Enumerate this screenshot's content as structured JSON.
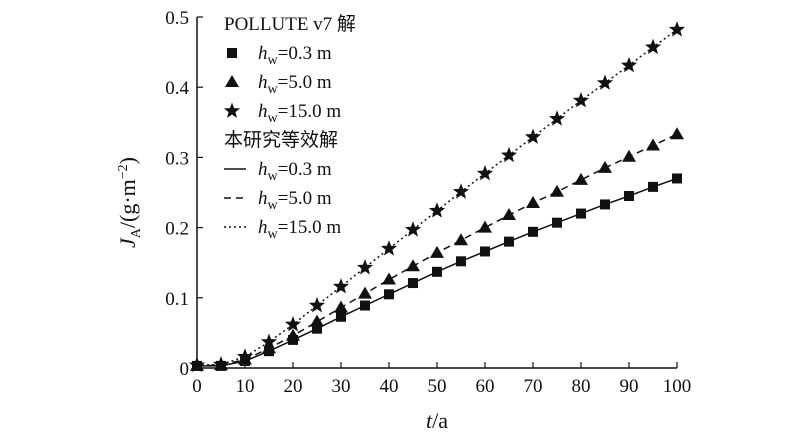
{
  "chart_data": {
    "type": "scatter",
    "title": "",
    "xlabel": "t/a",
    "ylabel": "J_A/(g·m^-2)",
    "xlim": [
      0,
      100
    ],
    "ylim": [
      0,
      0.5
    ],
    "x_ticks": [
      0,
      10,
      20,
      30,
      40,
      50,
      60,
      70,
      80,
      90,
      100
    ],
    "y_ticks": [
      0,
      0.1,
      0.2,
      0.3,
      0.4,
      0.5
    ],
    "y_tick_labels": [
      "0",
      "0.1",
      "0.2",
      "0.3",
      "0.4",
      "0.5"
    ],
    "grid": false,
    "legend": {
      "placement": "top-left",
      "groups": [
        {
          "title": "POLLUTE v7 解",
          "entries": [
            {
              "marker": "square",
              "label_sym": "h",
              "label_sub": "w",
              "label_rest": "=0.3 m"
            },
            {
              "marker": "triangle",
              "label_sym": "h",
              "label_sub": "w",
              "label_rest": "=5.0 m"
            },
            {
              "marker": "star",
              "label_sym": "h",
              "label_sub": "w",
              "label_rest": "=15.0 m"
            }
          ]
        },
        {
          "title": "本研究等效解",
          "entries": [
            {
              "line": "solid",
              "label_sym": "h",
              "label_sub": "w",
              "label_rest": "=0.3 m"
            },
            {
              "line": "dashed",
              "label_sym": "h",
              "label_sub": "w",
              "label_rest": "=5.0 m"
            },
            {
              "line": "dotted",
              "label_sym": "h",
              "label_sub": "w",
              "label_rest": "=15.0 m"
            }
          ]
        }
      ]
    },
    "x": [
      0,
      5,
      10,
      15,
      20,
      25,
      30,
      35,
      40,
      45,
      50,
      55,
      60,
      65,
      70,
      75,
      80,
      85,
      90,
      95,
      100
    ],
    "series": [
      {
        "name": "hw=0.3 m",
        "marker": "square",
        "line": "solid",
        "values": [
          0.003,
          0.003,
          0.01,
          0.024,
          0.04,
          0.056,
          0.073,
          0.089,
          0.105,
          0.121,
          0.137,
          0.152,
          0.166,
          0.18,
          0.194,
          0.207,
          0.22,
          0.233,
          0.245,
          0.258,
          0.27
        ]
      },
      {
        "name": "hw=5.0 m",
        "marker": "triangle",
        "line": "dashed",
        "values": [
          0.003,
          0.004,
          0.012,
          0.028,
          0.046,
          0.066,
          0.086,
          0.106,
          0.126,
          0.145,
          0.164,
          0.182,
          0.2,
          0.218,
          0.235,
          0.251,
          0.268,
          0.285,
          0.301,
          0.317,
          0.333
        ]
      },
      {
        "name": "hw=15.0 m",
        "marker": "star",
        "line": "dotted",
        "values": [
          0.004,
          0.005,
          0.016,
          0.037,
          0.062,
          0.089,
          0.116,
          0.143,
          0.17,
          0.197,
          0.224,
          0.251,
          0.277,
          0.303,
          0.329,
          0.355,
          0.381,
          0.406,
          0.431,
          0.457,
          0.482
        ]
      }
    ]
  }
}
